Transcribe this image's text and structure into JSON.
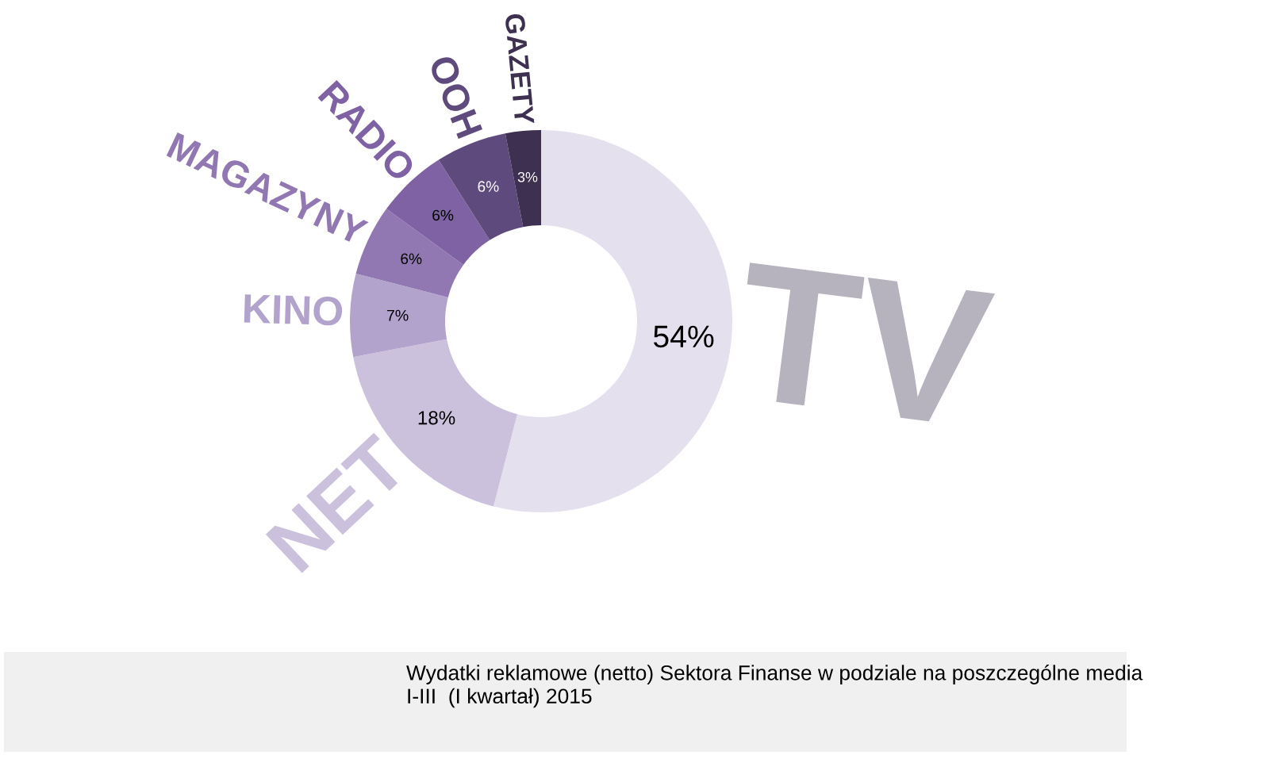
{
  "chart_data": {
    "type": "donut",
    "categories": [
      "TV",
      "NET",
      "KINO",
      "MAGAZYNY",
      "RADIO",
      "OOH",
      "GAZETY"
    ],
    "values": [
      54,
      18,
      7,
      6,
      6,
      6,
      3
    ],
    "value_labels": [
      "54%",
      "18%",
      "7%",
      "6%",
      "6%",
      "6%",
      "3%"
    ],
    "colors": [
      "#e5e0ee",
      "#cbc1dd",
      "#b2a3cc",
      "#9178b3",
      "#7e62a3",
      "#5e4a7c",
      "#3e3050"
    ],
    "annotations": [
      "Wydatki reklamowe (netto) Sektora Finanse w podziale na poszczególne media\nI-III  (I kwartał) 2015"
    ]
  }
}
